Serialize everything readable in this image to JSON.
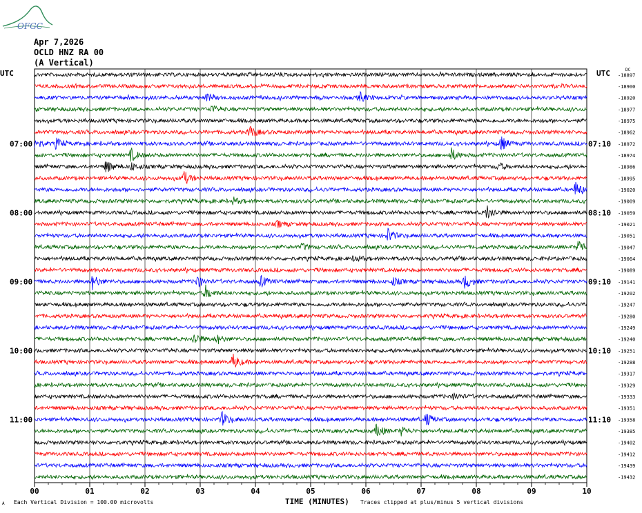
{
  "header": {
    "date": "Apr 7,2026",
    "station": "OCLD HNZ RA 00",
    "component": "(A Vertical)",
    "logo_text": "OFGC"
  },
  "chart_data": {
    "type": "line",
    "left_label": "UTC",
    "right_label": "UTC",
    "xlabel": "TIME (MINUTES)",
    "xlim": [
      0,
      10
    ],
    "x_ticks": [
      "00",
      "01",
      "02",
      "03",
      "04",
      "05",
      "06",
      "07",
      "08",
      "09",
      "10"
    ],
    "left_time_labels": [
      {
        "row": 6,
        "text": "07:00"
      },
      {
        "row": 12,
        "text": "08:00"
      },
      {
        "row": 18,
        "text": "09:00"
      },
      {
        "row": 24,
        "text": "10:00"
      },
      {
        "row": 30,
        "text": "11:00"
      }
    ],
    "right_time_labels": [
      {
        "row": 6,
        "text": "07:10"
      },
      {
        "row": 12,
        "text": "08:10"
      },
      {
        "row": 18,
        "text": "09:10"
      },
      {
        "row": 24,
        "text": "10:10"
      },
      {
        "row": 30,
        "text": "11:10"
      }
    ],
    "colors": [
      "#000000",
      "#ff0000",
      "#0000ff",
      "#006400"
    ],
    "traces": [
      {
        "offset": "-18897",
        "events": []
      },
      {
        "offset": "-18900",
        "events": []
      },
      {
        "offset": "-18920",
        "events": [
          {
            "t": 3.1,
            "amp": 0.5
          },
          {
            "t": 5.9,
            "amp": 0.6
          }
        ]
      },
      {
        "offset": "-18977",
        "events": [
          {
            "t": 3.2,
            "amp": 0.4
          }
        ]
      },
      {
        "offset": "-18975",
        "events": []
      },
      {
        "offset": "-18962",
        "events": [
          {
            "t": 3.9,
            "amp": 0.9
          }
        ]
      },
      {
        "offset": "-18972",
        "events": [
          {
            "t": 0.0,
            "amp": 0.8
          },
          {
            "t": 0.4,
            "amp": 0.6
          },
          {
            "t": 8.45,
            "amp": 0.9
          }
        ]
      },
      {
        "offset": "-18974",
        "events": [
          {
            "t": 1.75,
            "amp": 0.8
          },
          {
            "t": 7.55,
            "amp": 0.8
          }
        ]
      },
      {
        "offset": "-18986",
        "events": [
          {
            "t": 1.3,
            "amp": 0.8
          },
          {
            "t": 1.75,
            "amp": 0.5
          },
          {
            "t": 8.4,
            "amp": 0.5
          }
        ]
      },
      {
        "offset": "-18995",
        "events": [
          {
            "t": 2.7,
            "amp": 0.9
          }
        ]
      },
      {
        "offset": "-19020",
        "events": [
          {
            "t": 9.8,
            "amp": 0.9
          }
        ]
      },
      {
        "offset": "-19009",
        "events": [
          {
            "t": 3.6,
            "amp": 0.4
          }
        ]
      },
      {
        "offset": "-19059",
        "events": [
          {
            "t": 8.2,
            "amp": 0.9
          }
        ]
      },
      {
        "offset": "-19021",
        "events": [
          {
            "t": 4.4,
            "amp": 0.4
          }
        ]
      },
      {
        "offset": "-19051",
        "events": [
          {
            "t": 6.4,
            "amp": 0.9
          }
        ]
      },
      {
        "offset": "-19047",
        "events": [
          {
            "t": 4.85,
            "amp": 0.4
          },
          {
            "t": 9.85,
            "amp": 1.0
          }
        ]
      },
      {
        "offset": "-19064",
        "events": [
          {
            "t": 5.8,
            "amp": 0.4
          }
        ]
      },
      {
        "offset": "-19089",
        "events": []
      },
      {
        "offset": "-19141",
        "events": [
          {
            "t": 1.05,
            "amp": 0.9
          },
          {
            "t": 2.95,
            "amp": 0.7
          },
          {
            "t": 4.1,
            "amp": 0.7
          },
          {
            "t": 6.5,
            "amp": 0.5
          },
          {
            "t": 7.8,
            "amp": 0.9
          }
        ]
      },
      {
        "offset": "-19202",
        "events": [
          {
            "t": 3.1,
            "amp": 0.9
          }
        ]
      },
      {
        "offset": "-19247",
        "events": []
      },
      {
        "offset": "-19280",
        "events": []
      },
      {
        "offset": "-19249",
        "events": []
      },
      {
        "offset": "-19240",
        "events": [
          {
            "t": 2.9,
            "amp": 0.8
          },
          {
            "t": 3.3,
            "amp": 0.6
          }
        ]
      },
      {
        "offset": "-19251",
        "events": []
      },
      {
        "offset": "-19288",
        "events": [
          {
            "t": 3.6,
            "amp": 1.0
          }
        ]
      },
      {
        "offset": "-19317",
        "events": []
      },
      {
        "offset": "-19329",
        "events": []
      },
      {
        "offset": "-19333",
        "events": [
          {
            "t": 7.6,
            "amp": 0.4
          }
        ]
      },
      {
        "offset": "-19351",
        "events": []
      },
      {
        "offset": "-19358",
        "events": [
          {
            "t": 3.4,
            "amp": 0.9
          },
          {
            "t": 7.1,
            "amp": 0.8
          }
        ]
      },
      {
        "offset": "-19385",
        "events": [
          {
            "t": 6.2,
            "amp": 0.9
          },
          {
            "t": 6.65,
            "amp": 0.6
          }
        ]
      },
      {
        "offset": "-19402",
        "events": []
      },
      {
        "offset": "-19412",
        "events": []
      },
      {
        "offset": "-19439",
        "events": []
      },
      {
        "offset": "-19432",
        "events": []
      }
    ],
    "footer_left": "Each Vertical Division = 100.00 microvolts",
    "footer_right": "Traces clipped at plus/minus 5 vertical divisions",
    "top_right_small": "DC"
  }
}
